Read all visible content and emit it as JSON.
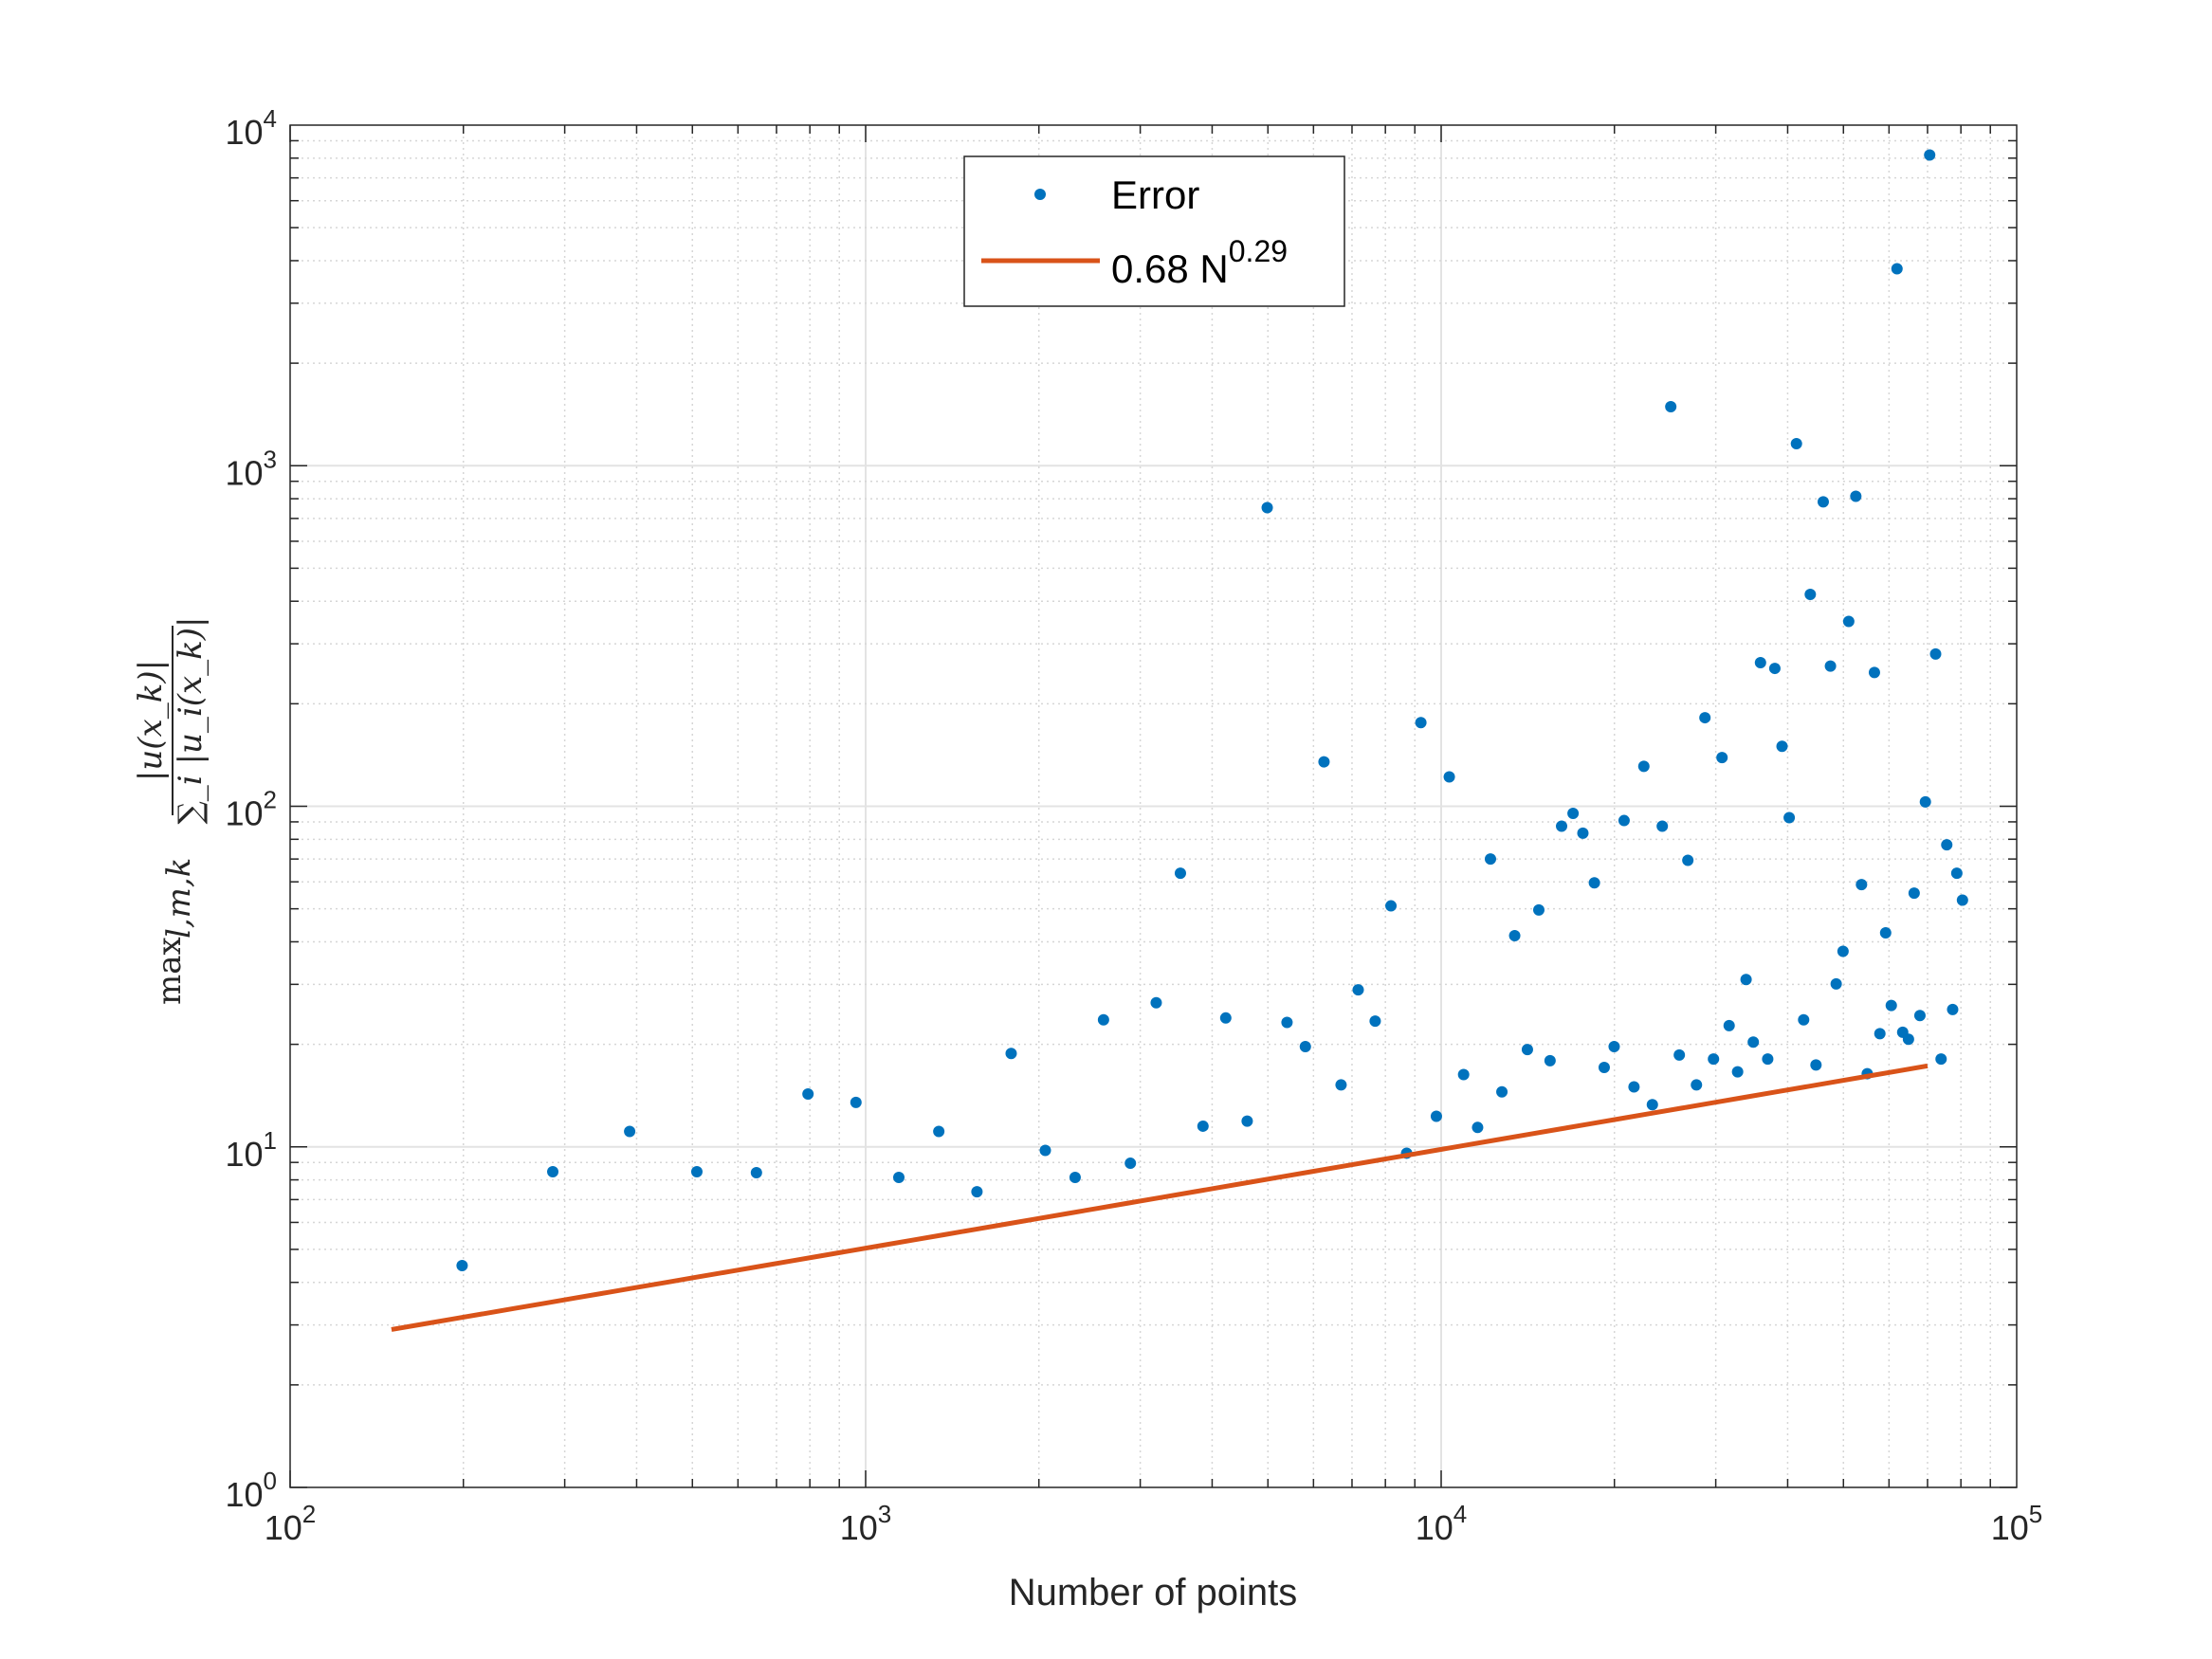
{
  "chart_data": {
    "type": "scatter",
    "title": "",
    "xlabel": "Number of points",
    "ylabel": {
      "prefix": "max",
      "subscript": "l,m,k",
      "numerator": "|u(x_k)|",
      "denominator": "∑_i |u_i(x_k)|"
    },
    "xscale": "log",
    "yscale": "log",
    "xlim": [
      100,
      100000
    ],
    "ylim": [
      1,
      10000
    ],
    "grid": true,
    "x_ticks": [
      {
        "base": "10",
        "exp": "2",
        "value": 100
      },
      {
        "base": "10",
        "exp": "3",
        "value": 1000
      },
      {
        "base": "10",
        "exp": "4",
        "value": 10000
      },
      {
        "base": "10",
        "exp": "5",
        "value": 100000
      }
    ],
    "y_ticks": [
      {
        "base": "10",
        "exp": "0",
        "value": 1
      },
      {
        "base": "10",
        "exp": "1",
        "value": 10
      },
      {
        "base": "10",
        "exp": "2",
        "value": 100
      },
      {
        "base": "10",
        "exp": "3",
        "value": 1000
      },
      {
        "base": "10",
        "exp": "4",
        "value": 10000
      }
    ],
    "legend": {
      "placement": "top-center",
      "entries": [
        {
          "label": "Error",
          "marker": "dot"
        },
        {
          "label": "0.68 N",
          "superscript": "0.29",
          "marker": "line"
        }
      ]
    },
    "series": [
      {
        "name": "Error",
        "type": "scatter",
        "color": "#0072BD",
        "points": [
          [
            199,
            4.48
          ],
          [
            286,
            8.45
          ],
          [
            389,
            11.1
          ],
          [
            509,
            8.45
          ],
          [
            646,
            8.4
          ],
          [
            794,
            14.3
          ],
          [
            962,
            13.5
          ],
          [
            1142,
            8.13
          ],
          [
            1340,
            11.1
          ],
          [
            1561,
            7.38
          ],
          [
            1790,
            18.8
          ],
          [
            2052,
            9.76
          ],
          [
            2312,
            8.13
          ],
          [
            2590,
            23.6
          ],
          [
            2884,
            8.95
          ],
          [
            3198,
            26.5
          ],
          [
            3523,
            63.6
          ],
          [
            3856,
            11.5
          ],
          [
            4224,
            23.9
          ],
          [
            4602,
            11.9
          ],
          [
            4986,
            753
          ],
          [
            5397,
            23.2
          ],
          [
            5808,
            19.7
          ],
          [
            6258,
            135
          ],
          [
            6700,
            15.2
          ],
          [
            7175,
            28.9
          ],
          [
            7680,
            23.4
          ],
          [
            8180,
            51
          ],
          [
            8710,
            9.58
          ],
          [
            9220,
            176
          ],
          [
            9810,
            12.3
          ],
          [
            10330,
            122
          ],
          [
            10940,
            16.3
          ],
          [
            11570,
            11.4
          ],
          [
            12180,
            70
          ],
          [
            12750,
            14.5
          ],
          [
            13420,
            41.7
          ],
          [
            14120,
            19.3
          ],
          [
            14780,
            49.6
          ],
          [
            15460,
            17.9
          ],
          [
            16190,
            87.4
          ],
          [
            16950,
            95.3
          ],
          [
            17630,
            83.4
          ],
          [
            18460,
            59.6
          ],
          [
            19200,
            17.1
          ],
          [
            19980,
            19.7
          ],
          [
            20790,
            90.8
          ],
          [
            21630,
            15.0
          ],
          [
            22500,
            131
          ],
          [
            23280,
            13.3
          ],
          [
            24220,
            87.4
          ],
          [
            25060,
            1490
          ],
          [
            25930,
            18.6
          ],
          [
            26830,
            69.4
          ],
          [
            27770,
            15.2
          ],
          [
            28730,
            182
          ],
          [
            29730,
            18.1
          ],
          [
            30760,
            139
          ],
          [
            31650,
            22.7
          ],
          [
            32740,
            16.6
          ],
          [
            33870,
            31
          ],
          [
            34860,
            20.3
          ],
          [
            35880,
            264
          ],
          [
            36930,
            18.1
          ],
          [
            38000,
            254
          ],
          [
            39110,
            150
          ],
          [
            40250,
            92.6
          ],
          [
            41430,
            1161
          ],
          [
            42640,
            23.6
          ],
          [
            43790,
            419
          ],
          [
            44800,
            17.4
          ],
          [
            46120,
            783
          ],
          [
            47470,
            258
          ],
          [
            48570,
            30.1
          ],
          [
            49920,
            37.5
          ],
          [
            51070,
            349
          ],
          [
            52540,
            813
          ],
          [
            53750,
            58.9
          ],
          [
            55000,
            16.4
          ],
          [
            56600,
            247
          ],
          [
            57850,
            21.5
          ],
          [
            59200,
            42.5
          ],
          [
            60550,
            26
          ],
          [
            61950,
            3787
          ],
          [
            63380,
            21.7
          ],
          [
            64860,
            20.7
          ],
          [
            66350,
            55.6
          ],
          [
            67900,
            24.3
          ],
          [
            69400,
            103
          ],
          [
            70600,
            8170
          ],
          [
            72300,
            280
          ],
          [
            73900,
            18.1
          ],
          [
            75600,
            77.1
          ],
          [
            77400,
            25.3
          ],
          [
            78700,
            63.6
          ],
          [
            80500,
            53
          ]
        ]
      },
      {
        "name": "0.68 N^0.29",
        "type": "line",
        "color": "#D95319",
        "coefficient": 0.68,
        "exponent": 0.29,
        "x_range": [
          150,
          70000
        ]
      }
    ]
  }
}
